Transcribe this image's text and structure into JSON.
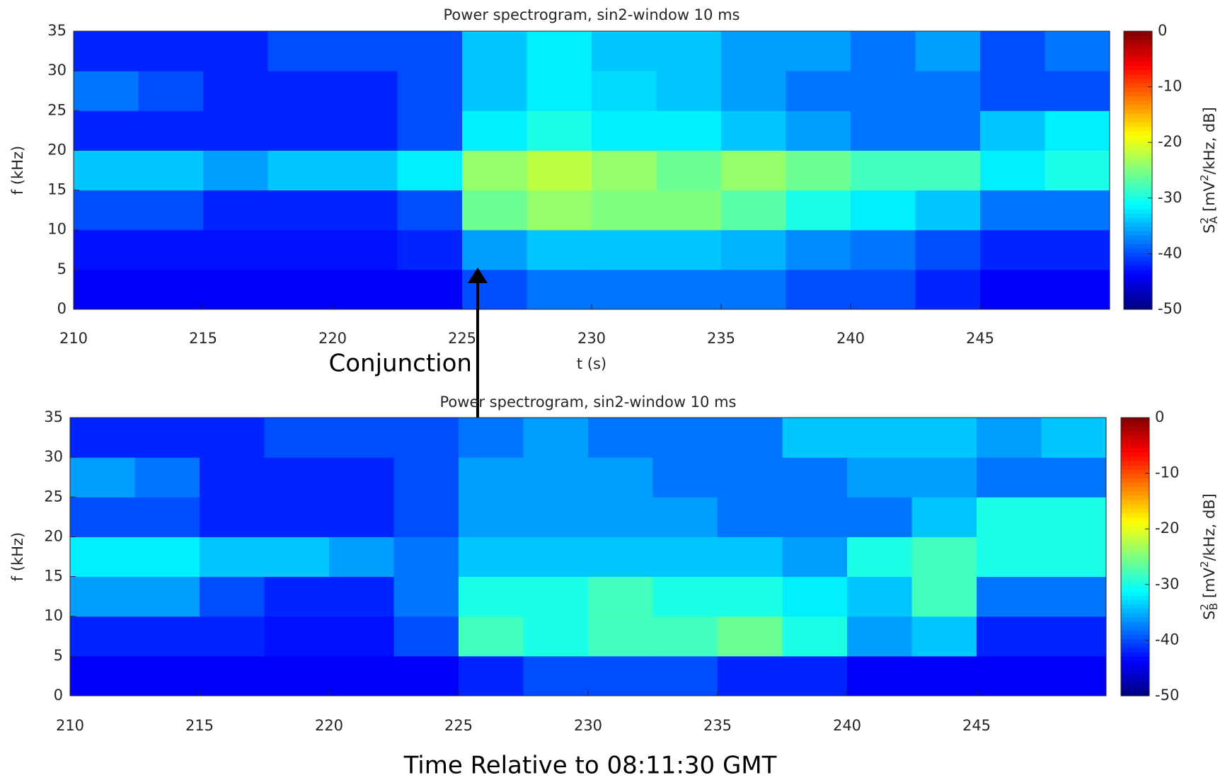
{
  "chart_data": [
    {
      "type": "heatmap",
      "title": "Power spectrogram, sin2-window 10 ms",
      "xlabel": "t (s)",
      "ylabel": "f (kHz)",
      "colorbar_label": [
        "S",
        "2",
        "A",
        " [mV",
        "2",
        "/kHz, dB]"
      ],
      "colormap": "jet",
      "xlim": [
        210,
        250
      ],
      "xticks": [
        210,
        215,
        220,
        225,
        230,
        235,
        240,
        245
      ],
      "ylim": [
        0,
        35
      ],
      "yticks": [
        0,
        5,
        10,
        15,
        20,
        25,
        30,
        35
      ],
      "clim": [
        -50,
        0
      ],
      "cticks": [
        0,
        -10,
        -20,
        -30,
        -40,
        -50
      ],
      "xbins": [
        210,
        212.5,
        215,
        217.5,
        220,
        222.5,
        225,
        227.5,
        230,
        232.5,
        235,
        237.5,
        240,
        242.5,
        245,
        247.5,
        250
      ],
      "ybins": [
        0,
        5,
        10,
        15,
        20,
        25,
        30,
        35
      ],
      "z": [
        [
          -44,
          -44,
          -44,
          -44,
          -44,
          -44,
          -40,
          -38,
          -38,
          -38,
          -38,
          -40,
          -40,
          -42,
          -44,
          -44
        ],
        [
          -43,
          -43,
          -43,
          -43,
          -43,
          -42,
          -36,
          -34,
          -34,
          -34,
          -35,
          -37,
          -38,
          -40,
          -42,
          -42
        ],
        [
          -40,
          -40,
          -42,
          -42,
          -42,
          -40,
          -26,
          -24,
          -25,
          -25,
          -27,
          -30,
          -32,
          -34,
          -38,
          -38
        ],
        [
          -34,
          -34,
          -36,
          -34,
          -34,
          -32,
          -24,
          -22,
          -24,
          -26,
          -24,
          -26,
          -28,
          -28,
          -32,
          -30
        ],
        [
          -42,
          -42,
          -42,
          -42,
          -42,
          -40,
          -32,
          -30,
          -32,
          -32,
          -34,
          -36,
          -38,
          -38,
          -34,
          -32
        ],
        [
          -38,
          -40,
          -42,
          -42,
          -42,
          -40,
          -34,
          -32,
          -33,
          -34,
          -36,
          -38,
          -38,
          -38,
          -40,
          -40
        ],
        [
          -42,
          -42,
          -42,
          -40,
          -40,
          -40,
          -34,
          -32,
          -34,
          -34,
          -36,
          -36,
          -38,
          -36,
          -40,
          -38
        ]
      ],
      "annotation": {
        "text": "Conjunction",
        "x": 225.6
      }
    },
    {
      "type": "heatmap",
      "title": "Power spectrogram, sin2-window 10 ms",
      "xlabel": "Time Relative to 08:11:30 GMT",
      "ylabel": "f (kHz)",
      "colorbar_label": [
        "S",
        "2",
        "B",
        " [mV",
        "2",
        "/kHz, dB]"
      ],
      "colormap": "jet",
      "xlim": [
        210,
        250
      ],
      "xticks": [
        210,
        215,
        220,
        225,
        230,
        235,
        240,
        245
      ],
      "ylim": [
        0,
        35
      ],
      "yticks": [
        0,
        5,
        10,
        15,
        20,
        25,
        30,
        35
      ],
      "clim": [
        -50,
        0
      ],
      "cticks": [
        0,
        -10,
        -20,
        -30,
        -40,
        -50
      ],
      "xbins": [
        210,
        212.5,
        215,
        217.5,
        220,
        222.5,
        225,
        227.5,
        230,
        232.5,
        235,
        237.5,
        240,
        242.5,
        245,
        247.5,
        250
      ],
      "ybins": [
        0,
        5,
        10,
        15,
        20,
        25,
        30,
        35
      ],
      "z": [
        [
          -44,
          -44,
          -44,
          -44,
          -44,
          -44,
          -42,
          -40,
          -40,
          -40,
          -42,
          -42,
          -44,
          -44,
          -44,
          -44
        ],
        [
          -42,
          -42,
          -42,
          -43,
          -43,
          -40,
          -28,
          -30,
          -28,
          -28,
          -26,
          -30,
          -36,
          -34,
          -42,
          -42
        ],
        [
          -36,
          -36,
          -40,
          -42,
          -42,
          -38,
          -30,
          -30,
          -28,
          -30,
          -30,
          -32,
          -34,
          -28,
          -38,
          -38
        ],
        [
          -32,
          -32,
          -34,
          -34,
          -36,
          -38,
          -34,
          -34,
          -34,
          -34,
          -34,
          -36,
          -30,
          -28,
          -30,
          -30
        ],
        [
          -40,
          -40,
          -42,
          -42,
          -42,
          -40,
          -36,
          -36,
          -36,
          -36,
          -38,
          -38,
          -38,
          -34,
          -30,
          -30
        ],
        [
          -36,
          -38,
          -42,
          -42,
          -42,
          -40,
          -36,
          -36,
          -36,
          -38,
          -38,
          -38,
          -36,
          -36,
          -38,
          -38
        ],
        [
          -42,
          -42,
          -42,
          -40,
          -40,
          -40,
          -38,
          -36,
          -38,
          -38,
          -38,
          -34,
          -34,
          -34,
          -36,
          -34
        ]
      ]
    }
  ]
}
